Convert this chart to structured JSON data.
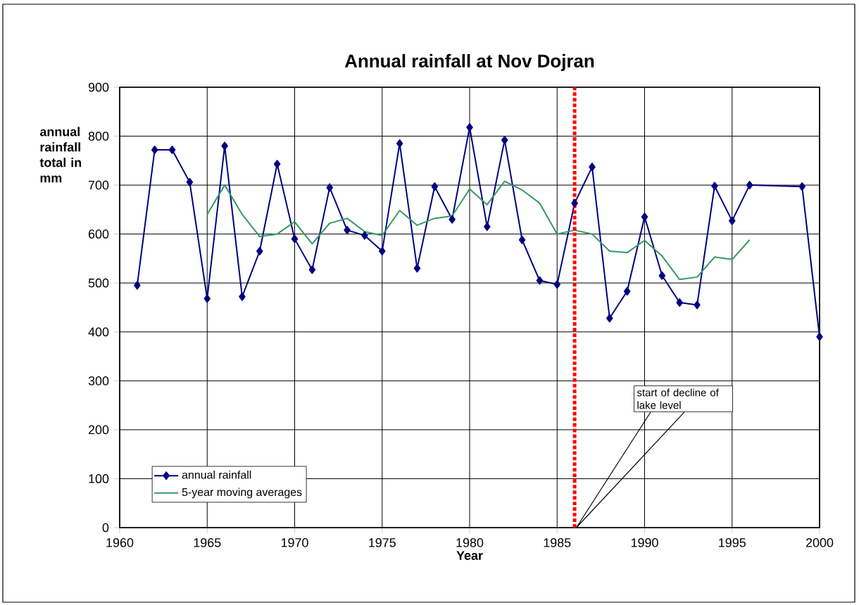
{
  "chart_data": {
    "type": "line",
    "title": "Annual rainfall at Nov Dojran",
    "xlabel": "Year",
    "ylabel": "annual rainfall total in mm",
    "xlim": [
      1960,
      2000
    ],
    "xticks": [
      1960,
      1965,
      1970,
      1975,
      1980,
      1985,
      1990,
      1995,
      2000
    ],
    "ylim": [
      0,
      900
    ],
    "yticks": [
      0,
      100,
      200,
      300,
      400,
      500,
      600,
      700,
      800,
      900
    ],
    "grid": true,
    "legend": "bottom left",
    "series": [
      {
        "name": "annual rainfall",
        "color": "#000080",
        "marker": "diamond",
        "x": [
          1961,
          1962,
          1963,
          1964,
          1965,
          1966,
          1967,
          1968,
          1969,
          1970,
          1971,
          1972,
          1973,
          1974,
          1975,
          1976,
          1977,
          1978,
          1979,
          1980,
          1981,
          1982,
          1983,
          1984,
          1985,
          1986,
          1987,
          1988,
          1989,
          1990,
          1991,
          1992,
          1993,
          1994,
          1995,
          1996,
          1999,
          2000
        ],
        "values": [
          495,
          772,
          772,
          706,
          468,
          780,
          472,
          565,
          743,
          590,
          527,
          695,
          608,
          597,
          565,
          785,
          530,
          697,
          630,
          818,
          615,
          792,
          588,
          505,
          497,
          663,
          737,
          428,
          483,
          635,
          515,
          460,
          455,
          698,
          627,
          700,
          697,
          390
        ]
      },
      {
        "name": "5-year moving averages",
        "color": "#339966",
        "marker": "none",
        "x": [
          1965,
          1966,
          1967,
          1968,
          1969,
          1970,
          1971,
          1972,
          1973,
          1974,
          1975,
          1976,
          1977,
          1978,
          1979,
          1980,
          1981,
          1982,
          1983,
          1984,
          1985,
          1986,
          1987,
          1988,
          1989,
          1990,
          1991,
          1992,
          1993,
          1994,
          1995,
          1996
        ],
        "values": [
          640,
          700,
          640,
          595,
          600,
          625,
          580,
          622,
          632,
          605,
          597,
          648,
          618,
          632,
          637,
          692,
          660,
          708,
          690,
          663,
          600,
          608,
          600,
          565,
          562,
          587,
          555,
          507,
          512,
          553,
          548,
          588
        ]
      }
    ],
    "ref_lines": [
      {
        "axis": "x",
        "value": 1986,
        "color": "#ff0000",
        "line_style": "dotted"
      }
    ],
    "annotations": [
      "start of decline of lake level"
    ]
  }
}
